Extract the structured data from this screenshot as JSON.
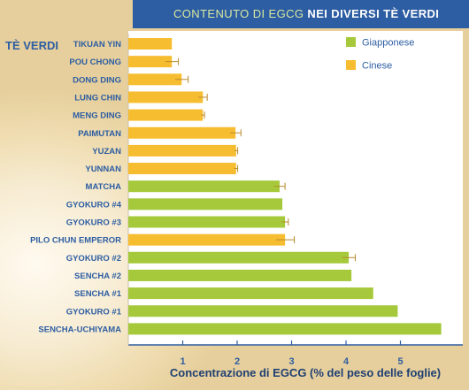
{
  "title": {
    "prefix": "CONTENUTO DI EGCG",
    "suffix": "NEI DIVERSI TÈ VERDI"
  },
  "colors": {
    "giapponese": "#a5c93b",
    "cinese": "#f7bd31",
    "header": "#2d5da2",
    "text": "#2d5da2",
    "error_bar": "#b88a2c"
  },
  "chart_data": {
    "type": "bar",
    "orientation": "horizontal",
    "title": "CONTENUTO DI EGCG NEI DIVERSI TÈ VERDI",
    "category_axis_title": "TÈ VERDI",
    "xlabel": "Concentrazione di EGCG (% del peso delle foglie)",
    "xlim": [
      0,
      5.85
    ],
    "xticks": [
      "1",
      "2",
      "3",
      "4",
      "5"
    ],
    "legend": {
      "position": "top-right",
      "entries": [
        {
          "name": "Giapponese",
          "color": "#a5c93b"
        },
        {
          "name": "Cinese",
          "color": "#f7bd31"
        }
      ]
    },
    "bars": [
      {
        "label": "TIKUAN YIN",
        "value": 0.8,
        "error": 0,
        "group": "Cinese"
      },
      {
        "label": "POU CHONG",
        "value": 0.8,
        "error": 0.12,
        "group": "Cinese"
      },
      {
        "label": "DONG DING",
        "value": 0.98,
        "error": 0.12,
        "group": "Cinese"
      },
      {
        "label": "LUNG CHIN",
        "value": 1.37,
        "error": 0.08,
        "group": "Cinese"
      },
      {
        "label": "MENG DING",
        "value": 1.37,
        "error": 0.03,
        "group": "Cinese"
      },
      {
        "label": "PAIMUTAN",
        "value": 1.97,
        "error": 0.1,
        "group": "Cinese"
      },
      {
        "label": "YUZAN",
        "value": 1.98,
        "error": 0.03,
        "group": "Cinese"
      },
      {
        "label": "YUNNAN",
        "value": 1.98,
        "error": 0.03,
        "group": "Cinese"
      },
      {
        "label": "MATCHA",
        "value": 2.78,
        "error": 0.1,
        "group": "Giapponese"
      },
      {
        "label": "GYOKURO #4",
        "value": 2.83,
        "error": 0,
        "group": "Giapponese"
      },
      {
        "label": "GYOKURO #3",
        "value": 2.88,
        "error": 0.06,
        "group": "Giapponese"
      },
      {
        "label": "PILO CHUN EMPEROR",
        "value": 2.88,
        "error": 0.17,
        "group": "Cinese"
      },
      {
        "label": "GYOKURO #2",
        "value": 4.05,
        "error": 0.12,
        "group": "Giapponese"
      },
      {
        "label": "SENCHA #2",
        "value": 4.1,
        "error": 0,
        "group": "Giapponese"
      },
      {
        "label": "SENCHA #1",
        "value": 4.5,
        "error": 0,
        "group": "Giapponese"
      },
      {
        "label": "GYOKURO #1",
        "value": 4.95,
        "error": 0,
        "group": "Giapponese"
      },
      {
        "label": "SENCHA-UCHIYAMA",
        "value": 5.75,
        "error": 0,
        "group": "Giapponese"
      }
    ]
  }
}
